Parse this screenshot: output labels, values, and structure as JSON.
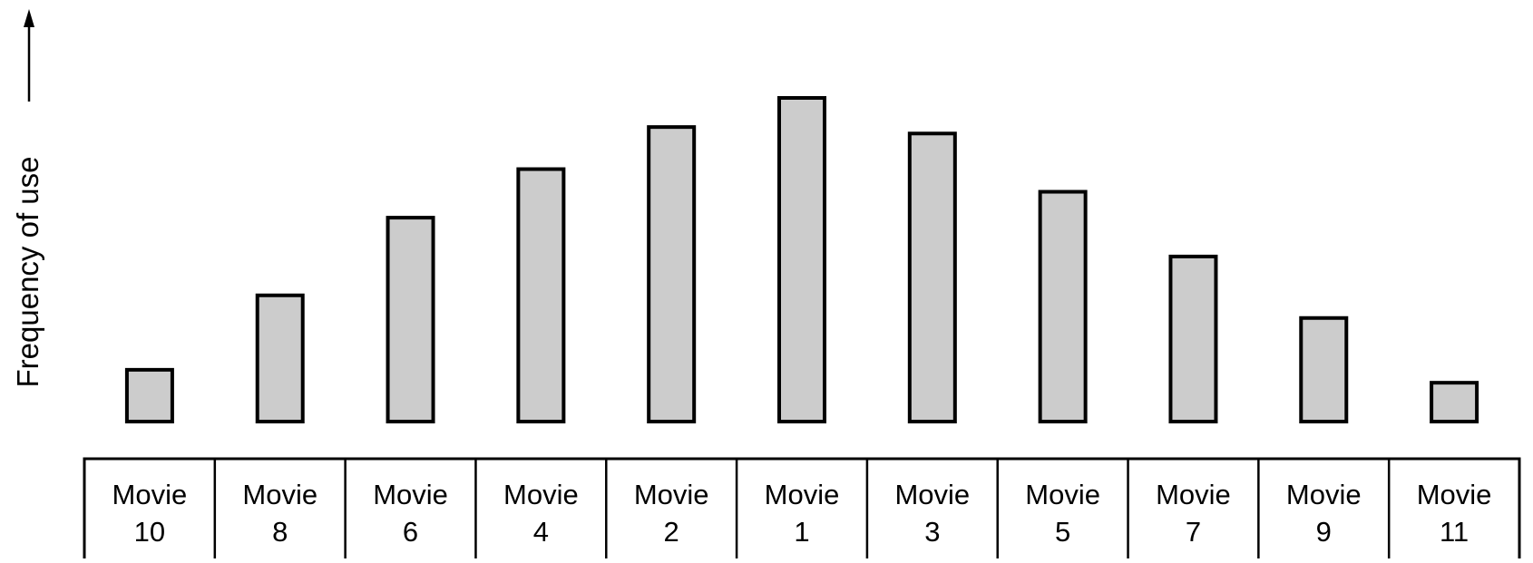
{
  "chart_data": {
    "type": "bar",
    "title": "",
    "xlabel": "",
    "ylabel": "Frequency of use",
    "categories": [
      [
        "Movie",
        "10"
      ],
      [
        "Movie",
        "8"
      ],
      [
        "Movie",
        "6"
      ],
      [
        "Movie",
        "4"
      ],
      [
        "Movie",
        "2"
      ],
      [
        "Movie",
        "1"
      ],
      [
        "Movie",
        "3"
      ],
      [
        "Movie",
        "5"
      ],
      [
        "Movie",
        "7"
      ],
      [
        "Movie",
        "9"
      ],
      [
        "Movie",
        "11"
      ]
    ],
    "values": [
      1.6,
      3.9,
      6.3,
      7.8,
      9.1,
      10.0,
      8.9,
      7.1,
      5.1,
      3.2,
      1.2
    ],
    "ylim": [
      0,
      10
    ],
    "grid": false,
    "legend": "none",
    "y_axis_arrow": true,
    "colors": {
      "bar_fill": "#cccccc",
      "bar_stroke": "#000000",
      "label_border": "#000000"
    }
  }
}
